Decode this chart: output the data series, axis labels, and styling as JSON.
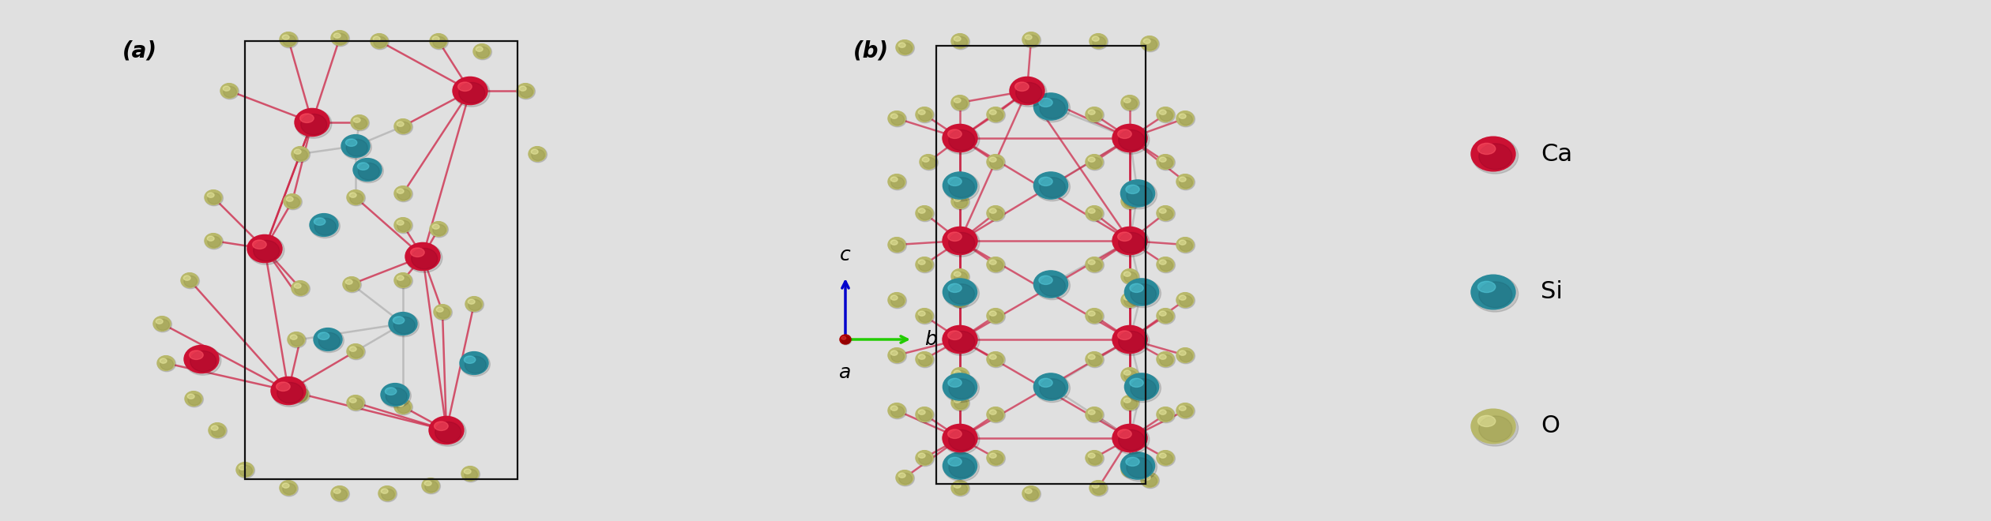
{
  "background_color": "#e0e0e0",
  "panel_a_label": "(a)",
  "panel_b_label": "(b)",
  "legend_items": [
    {
      "label": "Ca",
      "color": "#cc1133",
      "highlight": "#ff5566",
      "dark": "#880022"
    },
    {
      "label": "Si",
      "color": "#2a8a9a",
      "highlight": "#55ccdd",
      "dark": "#1a5a6a"
    },
    {
      "label": "O",
      "color": "#b8b86a",
      "highlight": "#e8e8a0",
      "dark": "#888840"
    }
  ],
  "axis_labels": {
    "c": "c",
    "b": "b",
    "a": "a"
  },
  "bond_color_red": "#cc2244",
  "bond_color_gray": "#b0b0b0",
  "label_fontsize": 20,
  "legend_fontsize": 22,
  "axis_fontsize": 18
}
